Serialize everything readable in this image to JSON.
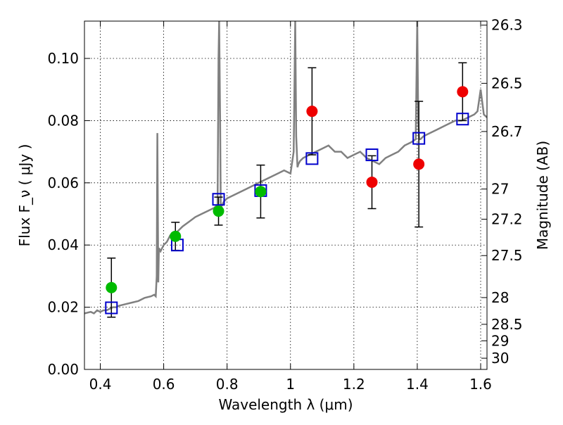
{
  "chart_data": {
    "type": "scatter",
    "xlabel": "Wavelength  λ (μm)",
    "ylabel": "Flux  F_ν  ( μJy )",
    "ylabel_right": "Magnitude (AB)",
    "xlim": [
      0.35,
      1.62
    ],
    "ylim": [
      0.0,
      0.112
    ],
    "grid": true,
    "x_ticks": [
      0.4,
      0.6,
      0.8,
      1.0,
      1.2,
      1.4,
      1.6
    ],
    "x_tick_labels": [
      "0.4",
      "0.6",
      "0.8",
      "1",
      "1.2",
      "1.4",
      "1.6"
    ],
    "y_ticks": [
      0.0,
      0.02,
      0.04,
      0.06,
      0.08,
      0.1
    ],
    "y_tick_labels": [
      "0.00",
      "0.02",
      "0.04",
      "0.06",
      "0.08",
      "0.10"
    ],
    "right_ticks": [
      {
        "label": "26.3",
        "flux": 0.1107
      },
      {
        "label": "26.5",
        "flux": 0.092
      },
      {
        "label": "26.7",
        "flux": 0.0765
      },
      {
        "label": "27",
        "flux": 0.058
      },
      {
        "label": "27.2",
        "flux": 0.0483
      },
      {
        "label": "27.5",
        "flux": 0.0366
      },
      {
        "label": "28",
        "flux": 0.0231
      },
      {
        "label": "28.5",
        "flux": 0.0145
      },
      {
        "label": "29",
        "flux": 0.0092
      },
      {
        "label": "30",
        "flux": 0.0036
      }
    ],
    "series": [
      {
        "kind": "model_spectrum",
        "color": "#808080",
        "x": [
          0.35,
          0.37,
          0.38,
          0.39,
          0.4,
          0.41,
          0.42,
          0.43,
          0.44,
          0.45,
          0.46,
          0.48,
          0.5,
          0.52,
          0.54,
          0.56,
          0.57,
          0.575,
          0.578,
          0.58,
          0.583,
          0.585,
          0.59,
          0.6,
          0.61,
          0.62,
          0.63,
          0.64,
          0.65,
          0.66,
          0.68,
          0.7,
          0.72,
          0.74,
          0.76,
          0.77,
          0.773,
          0.775,
          0.778,
          0.78,
          0.785,
          0.79,
          0.8,
          0.82,
          0.84,
          0.86,
          0.88,
          0.9,
          0.92,
          0.94,
          0.96,
          0.98,
          1.0,
          1.01,
          1.015,
          1.018,
          1.022,
          1.025,
          1.03,
          1.04,
          1.06,
          1.08,
          1.1,
          1.12,
          1.14,
          1.16,
          1.18,
          1.2,
          1.22,
          1.24,
          1.26,
          1.28,
          1.3,
          1.32,
          1.34,
          1.36,
          1.38,
          1.395,
          1.4,
          1.403,
          1.406,
          1.41,
          1.42,
          1.44,
          1.46,
          1.48,
          1.5,
          1.52,
          1.54,
          1.56,
          1.58,
          1.59,
          1.6,
          1.61,
          1.62
        ],
        "y": [
          0.018,
          0.0185,
          0.018,
          0.019,
          0.0185,
          0.019,
          0.019,
          0.0195,
          0.02,
          0.02,
          0.0205,
          0.021,
          0.0215,
          0.022,
          0.023,
          0.0235,
          0.024,
          0.0235,
          0.03,
          0.076,
          0.028,
          0.039,
          0.038,
          0.04,
          0.041,
          0.043,
          0.042,
          0.044,
          0.045,
          0.046,
          0.0475,
          0.049,
          0.05,
          0.051,
          0.052,
          0.053,
          0.1,
          0.112,
          0.08,
          0.052,
          0.053,
          0.054,
          0.055,
          0.056,
          0.057,
          0.058,
          0.059,
          0.06,
          0.061,
          0.062,
          0.063,
          0.064,
          0.063,
          0.07,
          0.112,
          0.075,
          0.065,
          0.066,
          0.067,
          0.068,
          0.069,
          0.07,
          0.071,
          0.072,
          0.07,
          0.07,
          0.068,
          0.069,
          0.07,
          0.068,
          0.067,
          0.066,
          0.068,
          0.069,
          0.07,
          0.072,
          0.073,
          0.074,
          0.112,
          0.08,
          0.074,
          0.074,
          0.075,
          0.076,
          0.077,
          0.078,
          0.079,
          0.08,
          0.08,
          0.081,
          0.082,
          0.083,
          0.09,
          0.082,
          0.081
        ]
      },
      {
        "kind": "model_photometry",
        "marker": "open_square",
        "color": "#0000cc",
        "x": [
          0.435,
          0.643,
          0.773,
          0.906,
          1.068,
          1.257,
          1.405,
          1.543
        ],
        "y": [
          0.0198,
          0.04,
          0.0547,
          0.0575,
          0.0678,
          0.069,
          0.0743,
          0.0805
        ]
      },
      {
        "kind": "observed_detections",
        "marker": "filled_circle",
        "color": "#00bb00",
        "x": [
          0.435,
          0.637,
          0.773,
          0.906
        ],
        "y": [
          0.0263,
          0.0428,
          0.0509,
          0.0572
        ],
        "err": [
          0.0095,
          0.0045,
          0.0045,
          0.0085
        ]
      },
      {
        "kind": "observed_other",
        "marker": "filled_circle",
        "color": "#ee0000",
        "x": [
          1.068,
          1.257,
          1.405,
          1.543
        ],
        "y": [
          0.083,
          0.0602,
          0.066,
          0.0893
        ],
        "err": [
          0.014,
          0.0085,
          0.0202,
          0.0093
        ]
      }
    ]
  }
}
